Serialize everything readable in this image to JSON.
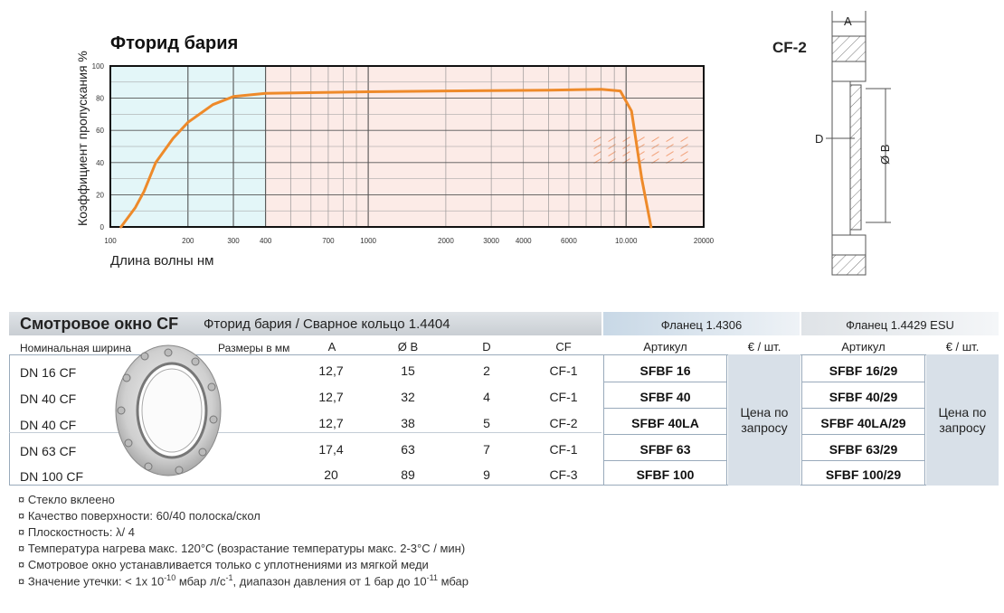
{
  "chart": {
    "title": "Фторид бария",
    "ylabel": "Коэффициент пропускания %",
    "xlabel": "Длина волны нм"
  },
  "chart_data": {
    "type": "line",
    "title": "Фторид бария",
    "xlabel": "Длина волны нм",
    "ylabel": "Коэффициент пропускания %",
    "x_scale": "log",
    "xlim": [
      100,
      20000
    ],
    "ylim": [
      0,
      100
    ],
    "x_ticks": [
      "100",
      "200",
      "300",
      "400",
      "700",
      "1000",
      "2000",
      "3000",
      "4000",
      "6000",
      "10.000",
      "20000"
    ],
    "y_ticks": [
      "0",
      "20",
      "40",
      "60",
      "80",
      "100"
    ],
    "series": [
      {
        "color": "#ee8a2a",
        "x": [
          110,
          125,
          135,
          150,
          175,
          200,
          250,
          300,
          400,
          1000,
          2000,
          5000,
          8000,
          9500,
          10500,
          11500,
          12500
        ],
        "y": [
          0,
          12,
          22,
          40,
          55,
          65,
          76,
          81,
          83,
          84,
          84.5,
          85,
          85.5,
          84.5,
          72,
          30,
          0
        ]
      }
    ],
    "grid": true
  },
  "drawing": {
    "title": "CF-2",
    "dim_a": "A",
    "dim_b": "Ø B",
    "dim_d": "D"
  },
  "table": {
    "title": "Смотровое окно CF",
    "subtitle": "Фторид бария / Сварное кольцо 1.4404",
    "flange1": "Фланец  1.4306",
    "flange2": "Фланец  1.4429 ESU",
    "col_nominal": "Номинальная ширина",
    "col_sizes": "Размеры в мм",
    "col_a": "A",
    "col_b": "Ø B",
    "col_d": "D",
    "col_cf": "CF",
    "col_article1": "Артикул",
    "col_price1": "€ / шт.",
    "col_article2": "Артикул",
    "col_price2": "€ / шт.",
    "price_on_request": "Цена по запросу",
    "rows": [
      {
        "dn": "DN  16 CF",
        "a": "12,7",
        "b": "15",
        "d": "2",
        "cf": "CF-1",
        "art1": "SFBF 16",
        "art2": "SFBF 16/29"
      },
      {
        "dn": "DN  40 CF",
        "a": "12,7",
        "b": "32",
        "d": "4",
        "cf": "CF-1",
        "art1": "SFBF 40",
        "art2": "SFBF 40/29"
      },
      {
        "dn": "DN  40 CF",
        "a": "12,7",
        "b": "38",
        "d": "5",
        "cf": "CF-2",
        "art1": "SFBF 40LA",
        "art2": "SFBF 40LA/29"
      },
      {
        "dn": "DN  63 CF",
        "a": "17,4",
        "b": "63",
        "d": "7",
        "cf": "CF-1",
        "art1": "SFBF 63",
        "art2": "SFBF 63/29"
      },
      {
        "dn": "DN 100 CF",
        "a": "20",
        "b": "89",
        "d": "9",
        "cf": "CF-3",
        "art1": "SFBF 100",
        "art2": "SFBF 100/29"
      }
    ]
  },
  "notes": {
    "bullet": "¤",
    "n1": "Стекло вклеено",
    "n2": "Качество поверхности: 60/40 полоска/скол",
    "n3": "Плоскостность: λ/  4",
    "n4": "Температура нагрева макс. 120°C (возрастание температуры макс. 2-3°C / мин)",
    "n5": "Смотровое окно устанавливается только с уплотнениями из мягкой меди",
    "n6_a": "Значение утечки: < 1x 10",
    "n6_e1": "-10",
    "n6_b": " мбар л/с",
    "n6_e2": "-1",
    "n6_c": ", диапазон давления от 1 бар до 10",
    "n6_e3": "-11",
    "n6_d": " мбар"
  }
}
